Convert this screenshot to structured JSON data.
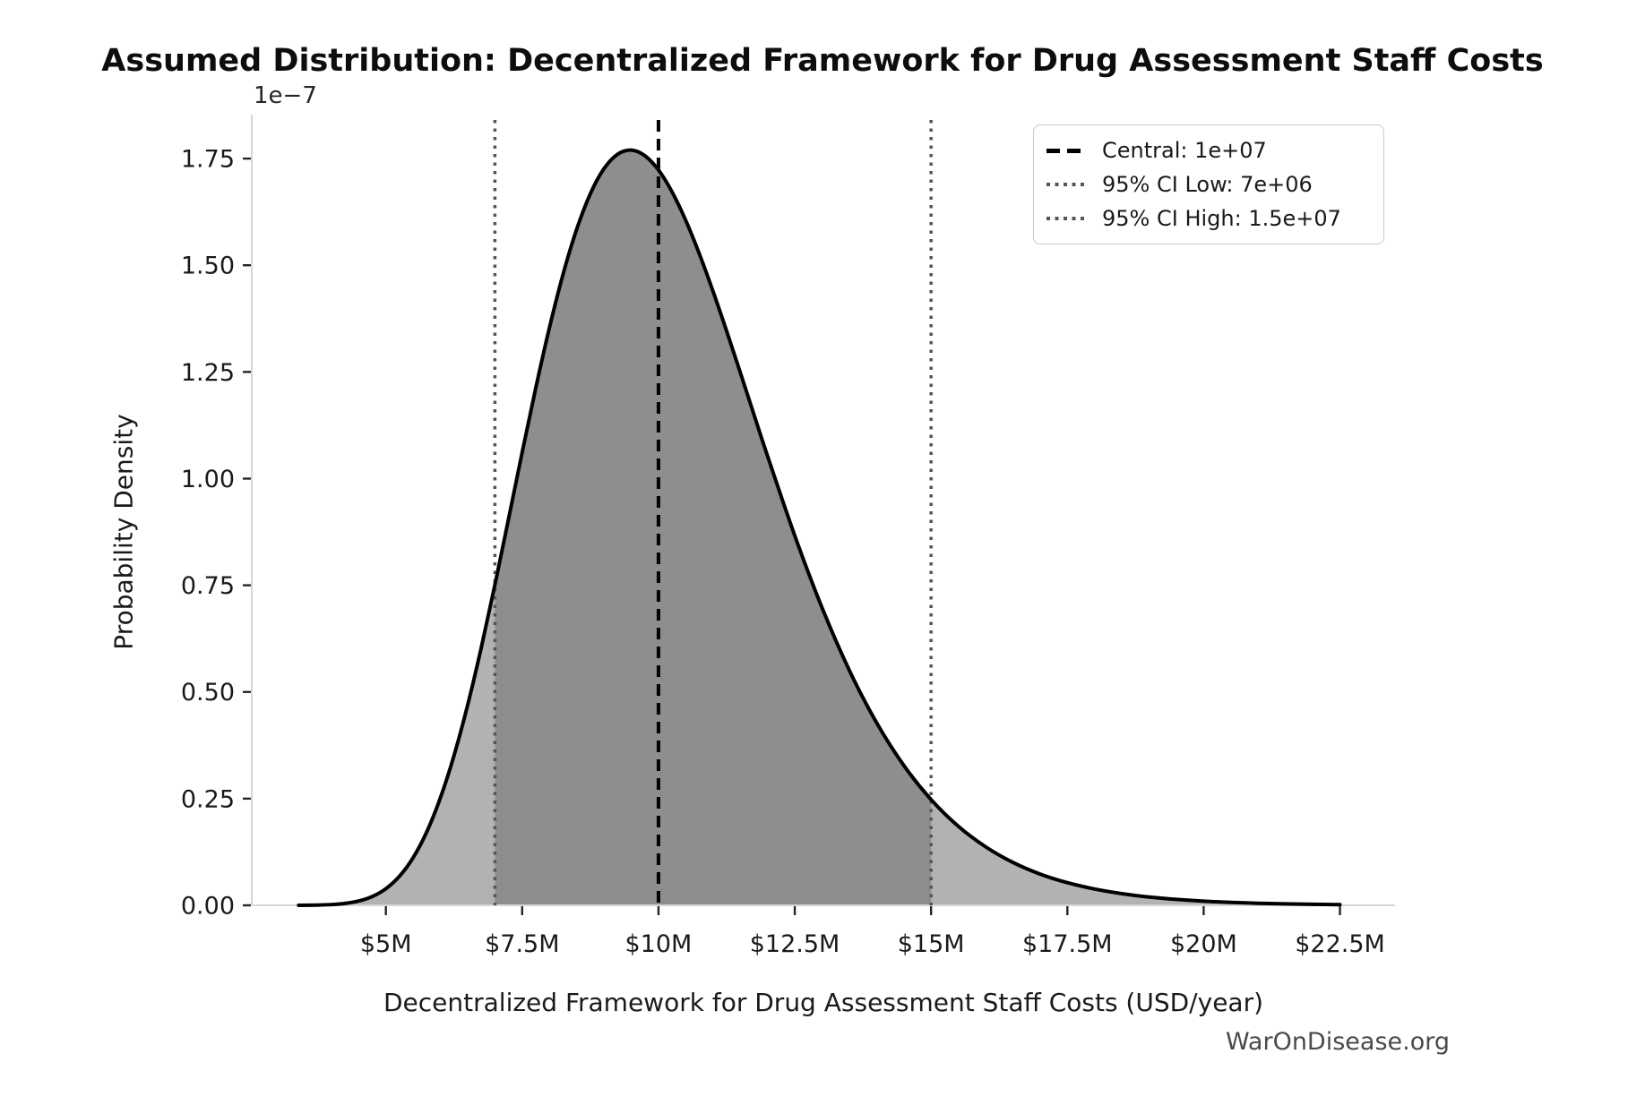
{
  "watermark": "WarOnDisease.org",
  "chart_data": {
    "type": "area",
    "title": "Assumed Distribution: Decentralized Framework for Drug Assessment Staff Costs",
    "xlabel": "Decentralized Framework for Drug Assessment Staff Costs (USD/year)",
    "ylabel": "Probability Density",
    "y_offset_label": "1e−7",
    "x_unit": "USD millions per year",
    "y_unit": "probability density in units of 1e-7 per USD",
    "xlim_millions": [
      2.54,
      23.51
    ],
    "ylim_1e7": [
      0,
      1.853
    ],
    "grid": false,
    "x_ticks": {
      "values": [
        5,
        7.5,
        10,
        12.5,
        15,
        17.5,
        20,
        22.5
      ],
      "labels": [
        "$5M",
        "$7.5M",
        "$10M",
        "$12.5M",
        "$15M",
        "$17.5M",
        "$20M",
        "$22.5M"
      ]
    },
    "y_ticks": {
      "values": [
        0,
        0.25,
        0.5,
        0.75,
        1.0,
        1.25,
        1.5,
        1.75
      ],
      "labels": [
        "0.00",
        "0.25",
        "0.50",
        "0.75",
        "1.00",
        "1.25",
        "1.50",
        "1.75"
      ]
    },
    "distribution": {
      "family": "lognormal",
      "median": 10000000,
      "mode_millions": 9.48,
      "peak_density_1e7": 1.77
    },
    "curve_points_x_millions_y_1e7": [
      [
        3.4,
        0.0001
      ],
      [
        3.75,
        0.0006
      ],
      [
        4.0,
        0.0017
      ],
      [
        4.25,
        0.0044
      ],
      [
        4.5,
        0.01
      ],
      [
        4.75,
        0.0206
      ],
      [
        5.0,
        0.039
      ],
      [
        5.25,
        0.0683
      ],
      [
        5.5,
        0.1117
      ],
      [
        5.75,
        0.1721
      ],
      [
        6.0,
        0.2519
      ],
      [
        6.25,
        0.3511
      ],
      [
        6.5,
        0.4693
      ],
      [
        6.75,
        0.6039
      ],
      [
        7.0,
        0.7513
      ],
      [
        7.25,
        0.9056
      ],
      [
        7.5,
        1.0615
      ],
      [
        7.75,
        1.2128
      ],
      [
        8.0,
        1.3536
      ],
      [
        8.25,
        1.4789
      ],
      [
        8.5,
        1.5845
      ],
      [
        8.75,
        1.6675
      ],
      [
        9.0,
        1.7262
      ],
      [
        9.25,
        1.7602
      ],
      [
        9.5,
        1.7699
      ],
      [
        9.75,
        1.7568
      ],
      [
        10.0,
        1.7232
      ],
      [
        10.25,
        1.6716
      ],
      [
        10.5,
        1.6051
      ],
      [
        10.75,
        1.5266
      ],
      [
        11.0,
        1.4392
      ],
      [
        11.25,
        1.3458
      ],
      [
        11.5,
        1.2488
      ],
      [
        11.75,
        1.1505
      ],
      [
        12.0,
        1.0531
      ],
      [
        12.5,
        0.8663
      ],
      [
        13.0,
        0.6974
      ],
      [
        13.5,
        0.5509
      ],
      [
        14.0,
        0.428
      ],
      [
        14.5,
        0.3277
      ],
      [
        15.0,
        0.2478
      ],
      [
        15.5,
        0.1852
      ],
      [
        16.0,
        0.1372
      ],
      [
        16.5,
        0.1006
      ],
      [
        17.0,
        0.0733
      ],
      [
        17.5,
        0.053
      ],
      [
        18.0,
        0.0381
      ],
      [
        18.5,
        0.0273
      ],
      [
        19.0,
        0.0194
      ],
      [
        19.5,
        0.0138
      ],
      [
        20.0,
        0.0097
      ],
      [
        20.5,
        0.0069
      ],
      [
        21.0,
        0.0048
      ],
      [
        21.5,
        0.0034
      ],
      [
        22.0,
        0.0024
      ],
      [
        22.5,
        0.0017
      ]
    ],
    "ci_region_millions": [
      7,
      15
    ],
    "reference_lines": [
      {
        "x_millions": 10,
        "style": "dashed",
        "color": "#000000",
        "label": "Central: 1e+07"
      },
      {
        "x_millions": 7,
        "style": "dotted",
        "color": "#555555",
        "label": "95% CI Low: 7e+06"
      },
      {
        "x_millions": 15,
        "style": "dotted",
        "color": "#555555",
        "label": "95% CI High: 1.5e+07"
      }
    ],
    "legend": {
      "position": "upper right",
      "entries": [
        {
          "style": "dashed",
          "color": "#000000",
          "label": "Central: 1e+07"
        },
        {
          "style": "dotted",
          "color": "#555555",
          "label": "95% CI Low: 7e+06"
        },
        {
          "style": "dotted",
          "color": "#555555",
          "label": "95% CI High: 1.5e+07"
        }
      ]
    },
    "colors": {
      "curve": "#000000",
      "fill": "#b2b2b2",
      "ci_fill": "#8e8e8e",
      "spine": "#d6d6d6",
      "tick": "#262626",
      "tick_label": "#1a1a1a"
    }
  }
}
